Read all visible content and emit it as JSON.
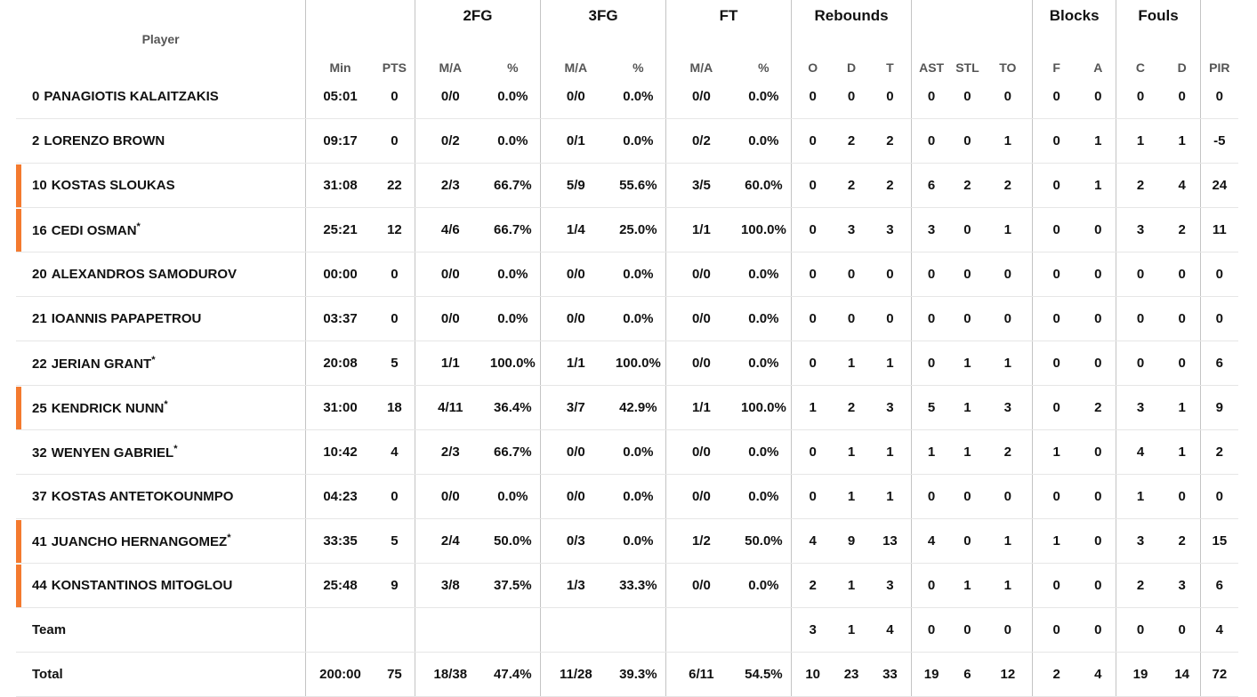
{
  "headers": {
    "groups": {
      "two_fg": "2FG",
      "three_fg": "3FG",
      "ft": "FT",
      "rebounds": "Rebounds",
      "blocks": "Blocks",
      "fouls": "Fouls"
    },
    "player": "Player",
    "min": "Min",
    "pts": "PTS",
    "two_ma": "M/A",
    "two_pct": "%",
    "three_ma": "M/A",
    "three_pct": "%",
    "ft_ma": "M/A",
    "ft_pct": "%",
    "reb_o": "O",
    "reb_d": "D",
    "reb_t": "T",
    "ast": "AST",
    "stl": "STL",
    "to": "TO",
    "blk_f": "F",
    "blk_a": "A",
    "foul_c": "C",
    "foul_d": "D",
    "pir": "PIR"
  },
  "accent_color": "#f47a2f",
  "players": [
    {
      "number": "0",
      "first": "PANAGIOTIS",
      "last": "KALAITZAKIS",
      "star": "",
      "starter": false,
      "min": "05:01",
      "pts": "0",
      "fg2": "0/0",
      "fg2p": "0.0%",
      "fg3": "0/0",
      "fg3p": "0.0%",
      "ft": "0/0",
      "ftp": "0.0%",
      "o": "0",
      "d": "0",
      "t": "0",
      "ast": "0",
      "stl": "0",
      "to": "0",
      "bf": "0",
      "ba": "0",
      "fc": "0",
      "fd": "0",
      "pir": "0"
    },
    {
      "number": "2",
      "first": "LORENZO",
      "last": "BROWN",
      "star": "",
      "starter": false,
      "min": "09:17",
      "pts": "0",
      "fg2": "0/2",
      "fg2p": "0.0%",
      "fg3": "0/1",
      "fg3p": "0.0%",
      "ft": "0/2",
      "ftp": "0.0%",
      "o": "0",
      "d": "2",
      "t": "2",
      "ast": "0",
      "stl": "0",
      "to": "1",
      "bf": "0",
      "ba": "1",
      "fc": "1",
      "fd": "1",
      "pir": "-5"
    },
    {
      "number": "10",
      "first": "KOSTAS",
      "last": "SLOUKAS",
      "star": "",
      "starter": true,
      "min": "31:08",
      "pts": "22",
      "fg2": "2/3",
      "fg2p": "66.7%",
      "fg3": "5/9",
      "fg3p": "55.6%",
      "ft": "3/5",
      "ftp": "60.0%",
      "o": "0",
      "d": "2",
      "t": "2",
      "ast": "6",
      "stl": "2",
      "to": "2",
      "bf": "0",
      "ba": "1",
      "fc": "2",
      "fd": "4",
      "pir": "24"
    },
    {
      "number": "16",
      "first": "CEDI",
      "last": "OSMAN",
      "star": "*",
      "starter": true,
      "min": "25:21",
      "pts": "12",
      "fg2": "4/6",
      "fg2p": "66.7%",
      "fg3": "1/4",
      "fg3p": "25.0%",
      "ft": "1/1",
      "ftp": "100.0%",
      "o": "0",
      "d": "3",
      "t": "3",
      "ast": "3",
      "stl": "0",
      "to": "1",
      "bf": "0",
      "ba": "0",
      "fc": "3",
      "fd": "2",
      "pir": "11"
    },
    {
      "number": "20",
      "first": "ALEXANDROS",
      "last": "SAMODUROV",
      "star": "",
      "starter": false,
      "min": "00:00",
      "pts": "0",
      "fg2": "0/0",
      "fg2p": "0.0%",
      "fg3": "0/0",
      "fg3p": "0.0%",
      "ft": "0/0",
      "ftp": "0.0%",
      "o": "0",
      "d": "0",
      "t": "0",
      "ast": "0",
      "stl": "0",
      "to": "0",
      "bf": "0",
      "ba": "0",
      "fc": "0",
      "fd": "0",
      "pir": "0"
    },
    {
      "number": "21",
      "first": "IOANNIS",
      "last": "PAPAPETROU",
      "star": "",
      "starter": false,
      "min": "03:37",
      "pts": "0",
      "fg2": "0/0",
      "fg2p": "0.0%",
      "fg3": "0/0",
      "fg3p": "0.0%",
      "ft": "0/0",
      "ftp": "0.0%",
      "o": "0",
      "d": "0",
      "t": "0",
      "ast": "0",
      "stl": "0",
      "to": "0",
      "bf": "0",
      "ba": "0",
      "fc": "0",
      "fd": "0",
      "pir": "0"
    },
    {
      "number": "22",
      "first": "JERIAN",
      "last": "GRANT",
      "star": "*",
      "starter": false,
      "min": "20:08",
      "pts": "5",
      "fg2": "1/1",
      "fg2p": "100.0%",
      "fg3": "1/1",
      "fg3p": "100.0%",
      "ft": "0/0",
      "ftp": "0.0%",
      "o": "0",
      "d": "1",
      "t": "1",
      "ast": "0",
      "stl": "1",
      "to": "1",
      "bf": "0",
      "ba": "0",
      "fc": "0",
      "fd": "0",
      "pir": "6"
    },
    {
      "number": "25",
      "first": "KENDRICK",
      "last": "NUNN",
      "star": "*",
      "starter": true,
      "min": "31:00",
      "pts": "18",
      "fg2": "4/11",
      "fg2p": "36.4%",
      "fg3": "3/7",
      "fg3p": "42.9%",
      "ft": "1/1",
      "ftp": "100.0%",
      "o": "1",
      "d": "2",
      "t": "3",
      "ast": "5",
      "stl": "1",
      "to": "3",
      "bf": "0",
      "ba": "2",
      "fc": "3",
      "fd": "1",
      "pir": "9"
    },
    {
      "number": "32",
      "first": "WENYEN",
      "last": "GABRIEL",
      "star": "*",
      "starter": false,
      "min": "10:42",
      "pts": "4",
      "fg2": "2/3",
      "fg2p": "66.7%",
      "fg3": "0/0",
      "fg3p": "0.0%",
      "ft": "0/0",
      "ftp": "0.0%",
      "o": "0",
      "d": "1",
      "t": "1",
      "ast": "1",
      "stl": "1",
      "to": "2",
      "bf": "1",
      "ba": "0",
      "fc": "4",
      "fd": "1",
      "pir": "2"
    },
    {
      "number": "37",
      "first": "KOSTAS",
      "last": "ANTETOKOUNMPO",
      "star": "",
      "starter": false,
      "min": "04:23",
      "pts": "0",
      "fg2": "0/0",
      "fg2p": "0.0%",
      "fg3": "0/0",
      "fg3p": "0.0%",
      "ft": "0/0",
      "ftp": "0.0%",
      "o": "0",
      "d": "1",
      "t": "1",
      "ast": "0",
      "stl": "0",
      "to": "0",
      "bf": "0",
      "ba": "0",
      "fc": "1",
      "fd": "0",
      "pir": "0"
    },
    {
      "number": "41",
      "first": "JUANCHO",
      "last": "HERNANGOMEZ",
      "star": "*",
      "starter": true,
      "min": "33:35",
      "pts": "5",
      "fg2": "2/4",
      "fg2p": "50.0%",
      "fg3": "0/3",
      "fg3p": "0.0%",
      "ft": "1/2",
      "ftp": "50.0%",
      "o": "4",
      "d": "9",
      "t": "13",
      "ast": "4",
      "stl": "0",
      "to": "1",
      "bf": "1",
      "ba": "0",
      "fc": "3",
      "fd": "2",
      "pir": "15"
    },
    {
      "number": "44",
      "first": "KONSTANTINOS",
      "last": "MITOGLOU",
      "star": "",
      "starter": true,
      "min": "25:48",
      "pts": "9",
      "fg2": "3/8",
      "fg2p": "37.5%",
      "fg3": "1/3",
      "fg3p": "33.3%",
      "ft": "0/0",
      "ftp": "0.0%",
      "o": "2",
      "d": "1",
      "t": "3",
      "ast": "0",
      "stl": "1",
      "to": "1",
      "bf": "0",
      "ba": "0",
      "fc": "2",
      "fd": "3",
      "pir": "6"
    }
  ],
  "team": {
    "label": "Team",
    "min": "",
    "pts": "",
    "fg2": "",
    "fg2p": "",
    "fg3": "",
    "fg3p": "",
    "ft": "",
    "ftp": "",
    "o": "3",
    "d": "1",
    "t": "4",
    "ast": "0",
    "stl": "0",
    "to": "0",
    "bf": "0",
    "ba": "0",
    "fc": "0",
    "fd": "0",
    "pir": "4"
  },
  "total": {
    "label": "Total",
    "min": "200:00",
    "pts": "75",
    "fg2": "18/38",
    "fg2p": "47.4%",
    "fg3": "11/28",
    "fg3p": "39.3%",
    "ft": "6/11",
    "ftp": "54.5%",
    "o": "10",
    "d": "23",
    "t": "33",
    "ast": "19",
    "stl": "6",
    "to": "12",
    "bf": "2",
    "ba": "4",
    "fc": "19",
    "fd": "14",
    "pir": "72"
  }
}
